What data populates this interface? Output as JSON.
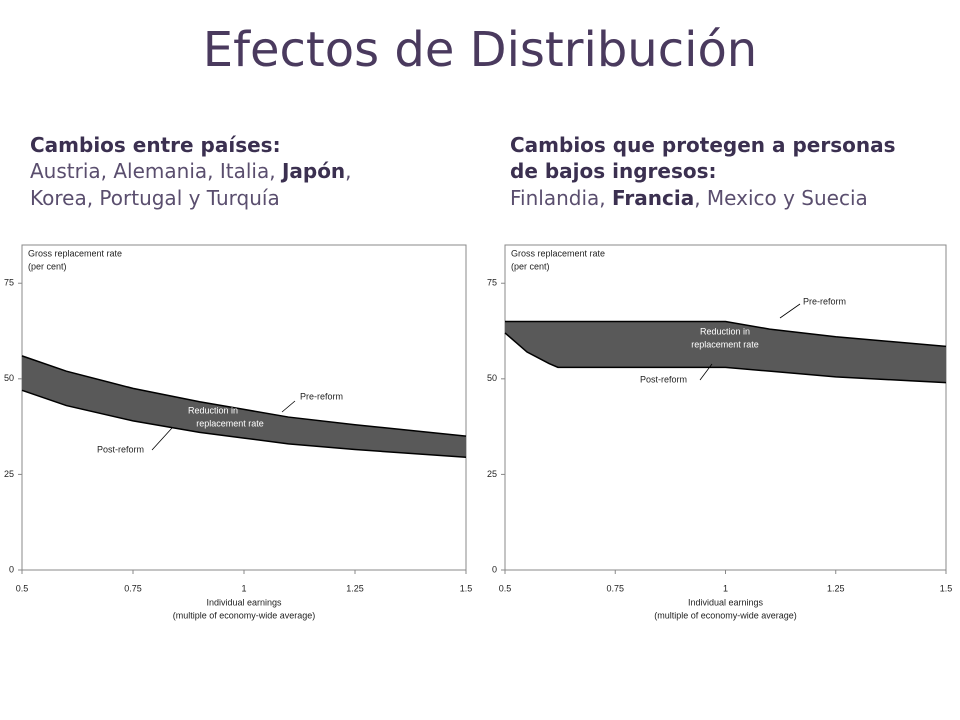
{
  "title": "Efectos de Distribución",
  "captions": [
    {
      "heading": "Cambios entre países:",
      "body": [
        {
          "text": "Austria, Alemania, Italia, "
        },
        {
          "text": "Japón",
          "bold": true
        },
        {
          "text": ", Korea, Portugal y Turquía"
        }
      ]
    },
    {
      "heading": "Cambios que protegen a personas de bajos ingresos:",
      "body": [
        {
          "text": "Finlandia, "
        },
        {
          "text": "Francia",
          "bold": true
        },
        {
          "text": ", Mexico y Suecia"
        }
      ]
    }
  ],
  "chart_data": [
    {
      "type": "band",
      "ylabel": [
        "Gross replacement rate",
        "(per cent)"
      ],
      "xlabel": [
        "Individual earnings",
        "(multiple of economy-wide average)"
      ],
      "annotation": [
        "Reduction in",
        "replacement rate"
      ],
      "fill": "#595959",
      "xlim": [
        0.5,
        1.5
      ],
      "xticks": [
        0.5,
        0.75,
        1,
        1.25,
        1.5
      ],
      "ylim": [
        0,
        85
      ],
      "yticks": [
        0,
        25,
        50,
        75
      ],
      "series": [
        {
          "name": "Pre-reform",
          "color": "#000000",
          "x": [
            0.5,
            0.6,
            0.75,
            0.9,
            1,
            1.1,
            1.25,
            1.5
          ],
          "values": [
            56,
            52,
            47.5,
            44,
            42,
            40,
            38,
            35
          ]
        },
        {
          "name": "Post-reform",
          "color": "#000000",
          "x": [
            0.5,
            0.6,
            0.75,
            0.9,
            1,
            1.1,
            1.25,
            1.5
          ],
          "values": [
            47,
            43,
            39,
            36,
            34.5,
            33,
            31.5,
            29.5
          ]
        }
      ]
    },
    {
      "type": "band",
      "ylabel": [
        "Gross replacement rate",
        "(per cent)"
      ],
      "xlabel": [
        "Individual earnings",
        "(multiple of economy-wide average)"
      ],
      "annotation": [
        "Reduction in",
        "replacement rate"
      ],
      "fill": "#595959",
      "xlim": [
        0.5,
        1.5
      ],
      "xticks": [
        0.5,
        0.75,
        1,
        1.25,
        1.5
      ],
      "ylim": [
        0,
        85
      ],
      "yticks": [
        0,
        25,
        50,
        75
      ],
      "series": [
        {
          "name": "Pre-reform",
          "color": "#000000",
          "x": [
            0.5,
            1,
            1.1,
            1.25,
            1.5
          ],
          "values": [
            65,
            65,
            63,
            61,
            58.5
          ]
        },
        {
          "name": "Post-reform",
          "color": "#000000",
          "x": [
            0.5,
            0.55,
            0.6,
            0.62,
            1,
            1.1,
            1.25,
            1.5
          ],
          "values": [
            62,
            57,
            54,
            53,
            53,
            52,
            50.5,
            49
          ]
        }
      ]
    }
  ]
}
